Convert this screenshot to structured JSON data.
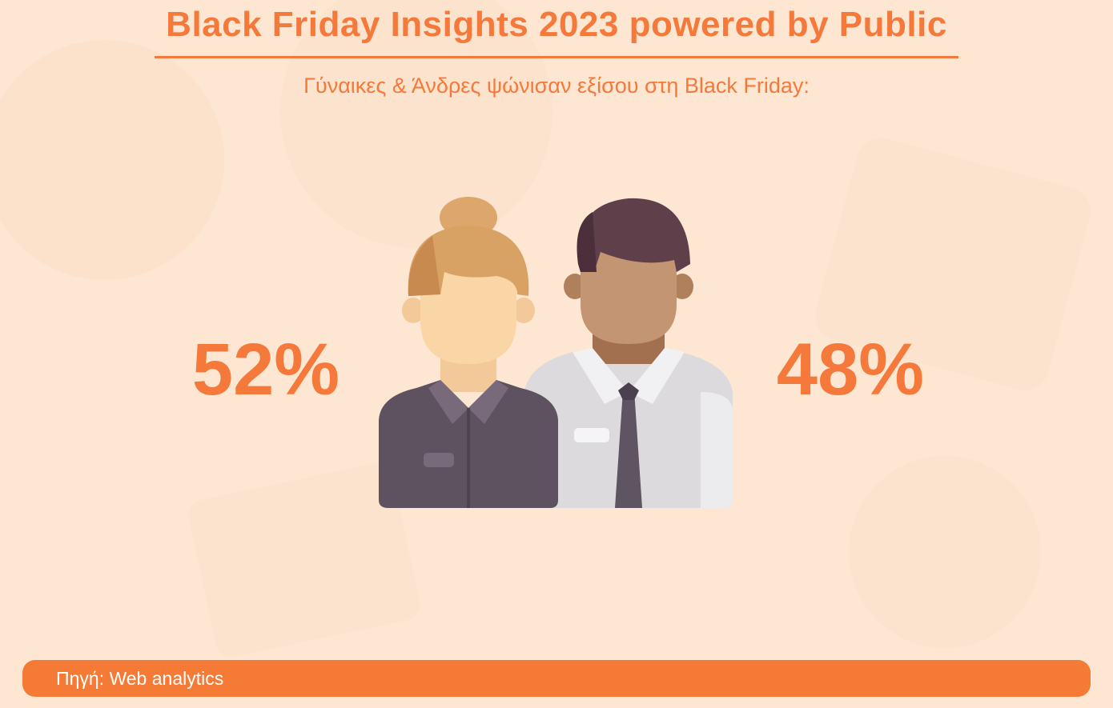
{
  "header": {
    "title": "Black Friday Insights 2023 powered by Public",
    "subtitle": "Γύναικες & Άνδρες ψώνισαν εξίσου στη Black Friday:"
  },
  "stats": [
    {
      "value": "52%"
    },
    {
      "value": "48%"
    }
  ],
  "footer": {
    "source": "Πηγή: Web analytics"
  }
}
